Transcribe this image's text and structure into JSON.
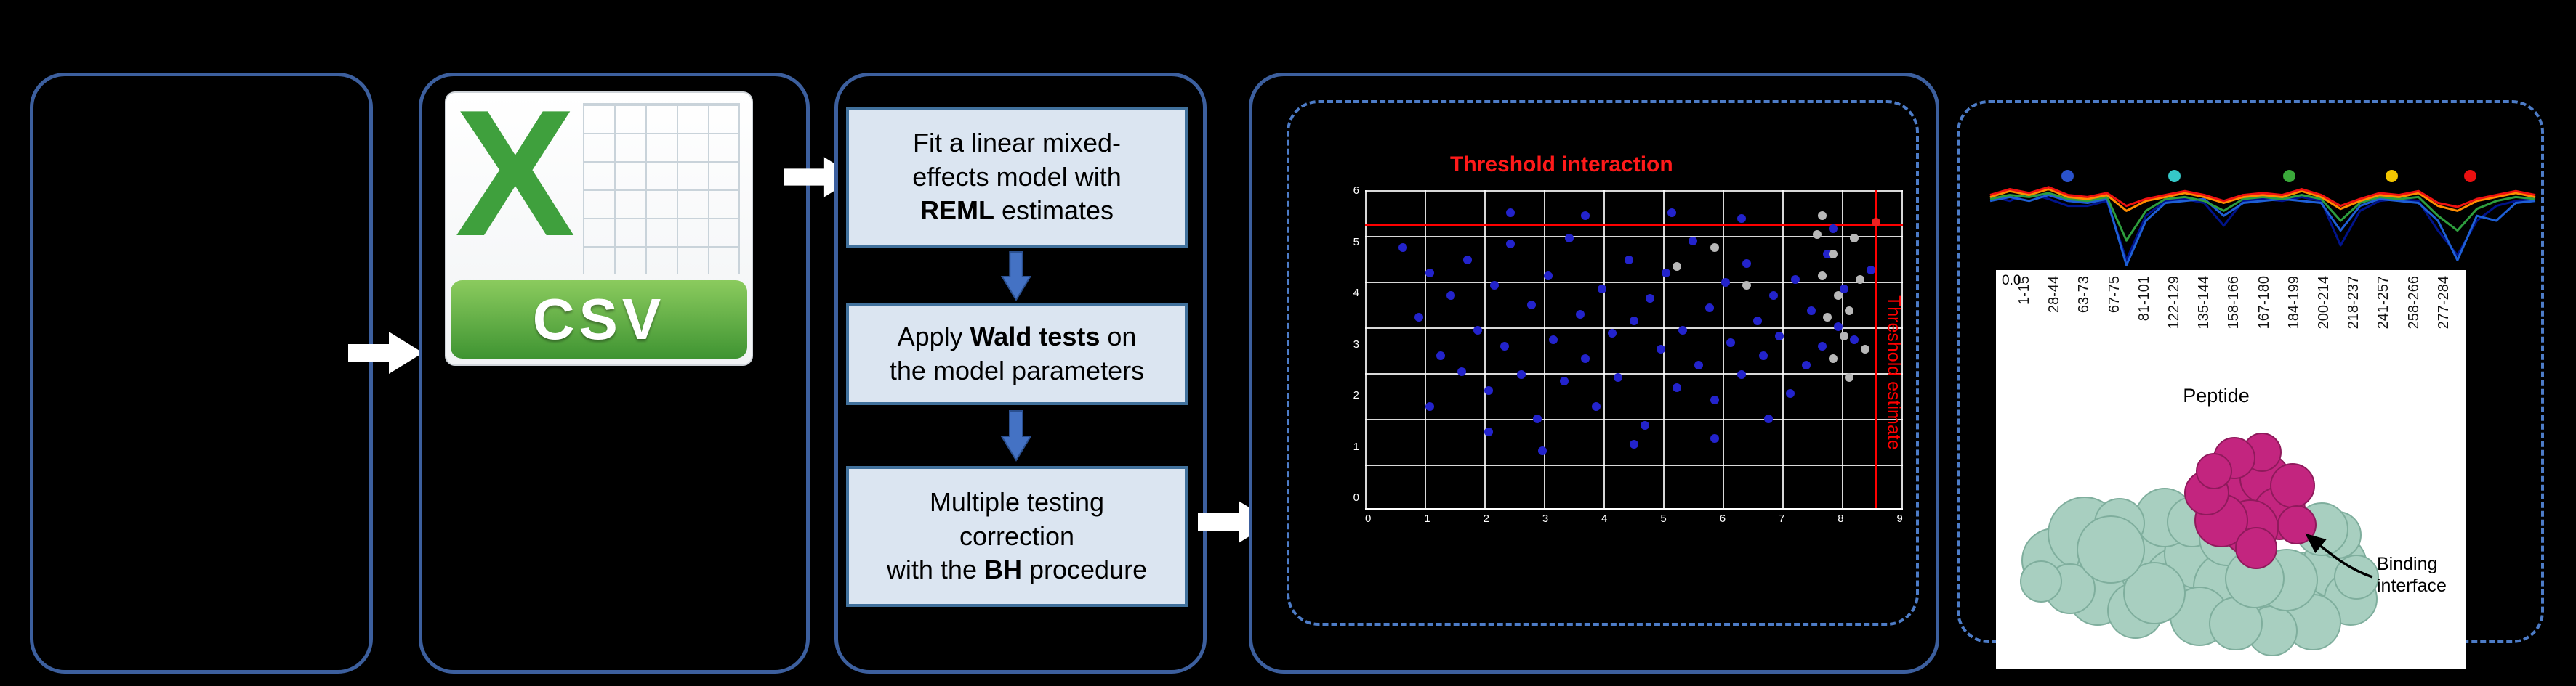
{
  "csv_icon": {
    "x_glyph": "X",
    "label": "CSV"
  },
  "pipeline": {
    "steps": [
      {
        "lines": [
          [
            {
              "t": "Fit a linear mixed-"
            }
          ],
          [
            {
              "t": "effects model with"
            }
          ],
          [
            {
              "t": "REML",
              "b": true
            },
            {
              "t": " estimates"
            }
          ]
        ]
      },
      {
        "lines": [
          [
            {
              "t": "Apply "
            },
            {
              "t": "Wald tests",
              "b": true
            },
            {
              "t": " on"
            }
          ],
          [
            {
              "t": "the model parameters"
            }
          ]
        ]
      },
      {
        "lines": [
          [
            {
              "t": "Multiple testing"
            }
          ],
          [
            {
              "t": "correction"
            }
          ],
          [
            {
              "t": "with the "
            },
            {
              "t": "BH",
              "b": true
            },
            {
              "t": " procedure"
            }
          ]
        ]
      }
    ]
  },
  "scatter": {
    "title": "Threshold interaction",
    "vertical_label": "Threshold estimate",
    "x_ticks": [
      "0",
      "1",
      "2",
      "3",
      "4",
      "5",
      "6",
      "7",
      "8",
      "9"
    ],
    "y_ticks": [
      "6",
      "5",
      "4",
      "3",
      "2",
      "1",
      "0"
    ],
    "point_colors": {
      "blue": "#2323cc",
      "gray": "#b8b8b8",
      "red": "#ee2222"
    },
    "thresholds": {
      "horizontal_top_pct": 10.5,
      "vertical_left_pct": 94.9
    },
    "points": {
      "blue": [
        [
          7,
          18
        ],
        [
          10,
          40
        ],
        [
          12,
          26
        ],
        [
          14,
          52
        ],
        [
          16,
          33
        ],
        [
          18,
          57
        ],
        [
          19,
          22
        ],
        [
          21,
          44
        ],
        [
          23,
          63
        ],
        [
          24,
          30
        ],
        [
          26,
          49
        ],
        [
          27,
          17
        ],
        [
          29,
          58
        ],
        [
          31,
          36
        ],
        [
          32,
          72
        ],
        [
          34,
          27
        ],
        [
          35,
          47
        ],
        [
          37,
          60
        ],
        [
          38,
          15
        ],
        [
          40,
          39
        ],
        [
          41,
          53
        ],
        [
          43,
          68
        ],
        [
          44,
          31
        ],
        [
          46,
          45
        ],
        [
          47,
          59
        ],
        [
          49,
          22
        ],
        [
          50,
          41
        ],
        [
          52,
          74
        ],
        [
          53,
          34
        ],
        [
          55,
          50
        ],
        [
          56,
          26
        ],
        [
          58,
          62
        ],
        [
          59,
          44
        ],
        [
          61,
          16
        ],
        [
          62,
          55
        ],
        [
          64,
          37
        ],
        [
          65,
          66
        ],
        [
          67,
          29
        ],
        [
          68,
          48
        ],
        [
          70,
          58
        ],
        [
          71,
          23
        ],
        [
          73,
          41
        ],
        [
          74,
          52
        ],
        [
          76,
          33
        ],
        [
          77,
          46
        ],
        [
          79,
          64
        ],
        [
          80,
          28
        ],
        [
          82,
          55
        ],
        [
          83,
          38
        ],
        [
          85,
          49
        ],
        [
          86,
          20
        ],
        [
          88,
          43
        ],
        [
          89,
          31
        ],
        [
          91,
          47
        ],
        [
          33,
          82
        ],
        [
          50,
          80
        ],
        [
          65,
          78
        ],
        [
          23,
          76
        ],
        [
          75,
          72
        ],
        [
          12,
          68
        ],
        [
          41,
          8
        ],
        [
          57,
          7
        ],
        [
          70,
          9
        ],
        [
          27,
          7
        ],
        [
          87,
          12
        ],
        [
          94,
          25
        ]
      ],
      "gray": [
        [
          84,
          14
        ],
        [
          87,
          20
        ],
        [
          85,
          27
        ],
        [
          88,
          33
        ],
        [
          86,
          40
        ],
        [
          89,
          46
        ],
        [
          87,
          53
        ],
        [
          90,
          59
        ],
        [
          85,
          8
        ],
        [
          91,
          15
        ],
        [
          92,
          28
        ],
        [
          90,
          38
        ],
        [
          93,
          50
        ],
        [
          58,
          24
        ],
        [
          65,
          18
        ],
        [
          71,
          30
        ]
      ],
      "red": [
        [
          95,
          10
        ]
      ]
    }
  },
  "profile": {
    "zero_label": "0.0",
    "legend_colors": [
      "#2a52cc",
      "#35c8c8",
      "#3aa93a",
      "#f2c500",
      "#ea1010"
    ],
    "series": [
      {
        "color": "#00138b",
        "values": [
          0.25,
          0.3,
          0.22,
          0.28,
          0.35,
          0.35,
          0.3,
          0.9,
          0.45,
          0.3,
          0.28,
          0.32,
          0.55,
          0.3,
          0.28,
          0.3,
          0.26,
          0.3,
          0.75,
          0.4,
          0.3,
          0.28,
          0.3,
          0.6,
          0.85,
          0.5,
          0.35,
          0.3,
          0.28
        ]
      },
      {
        "color": "#1e5fd6",
        "values": [
          0.3,
          0.26,
          0.3,
          0.24,
          0.3,
          0.32,
          0.28,
          0.95,
          0.5,
          0.32,
          0.3,
          0.28,
          0.45,
          0.32,
          0.3,
          0.28,
          0.3,
          0.32,
          0.6,
          0.35,
          0.28,
          0.3,
          0.32,
          0.5,
          0.9,
          0.45,
          0.5,
          0.32,
          0.3
        ]
      },
      {
        "color": "#2e9e3e",
        "values": [
          0.28,
          0.24,
          0.26,
          0.22,
          0.28,
          0.3,
          0.26,
          0.7,
          0.4,
          0.28,
          0.26,
          0.3,
          0.4,
          0.28,
          0.26,
          0.28,
          0.24,
          0.28,
          0.5,
          0.32,
          0.26,
          0.28,
          0.26,
          0.45,
          0.6,
          0.38,
          0.3,
          0.26,
          0.28
        ]
      },
      {
        "color": "#ff8c00",
        "values": [
          0.26,
          0.2,
          0.24,
          0.18,
          0.26,
          0.28,
          0.24,
          0.4,
          0.3,
          0.26,
          0.22,
          0.26,
          0.32,
          0.26,
          0.24,
          0.26,
          0.2,
          0.26,
          0.38,
          0.3,
          0.24,
          0.26,
          0.22,
          0.35,
          0.4,
          0.3,
          0.26,
          0.22,
          0.26
        ]
      },
      {
        "color": "#ee1111",
        "values": [
          0.24,
          0.18,
          0.22,
          0.16,
          0.24,
          0.26,
          0.22,
          0.35,
          0.28,
          0.24,
          0.2,
          0.24,
          0.3,
          0.24,
          0.22,
          0.24,
          0.18,
          0.24,
          0.35,
          0.28,
          0.22,
          0.24,
          0.2,
          0.32,
          0.36,
          0.28,
          0.24,
          0.2,
          0.24
        ]
      }
    ]
  },
  "peptides": {
    "labels": [
      "1-15",
      "28-44",
      "63-73",
      "67-75",
      "81-101",
      "122-129",
      "135-144",
      "158-166",
      "167-180",
      "184-199",
      "200-214",
      "218-237",
      "241-257",
      "258-266",
      "277-284"
    ],
    "axis_title": "Peptide"
  },
  "binding": {
    "line1": "Binding",
    "line2": "interface"
  }
}
